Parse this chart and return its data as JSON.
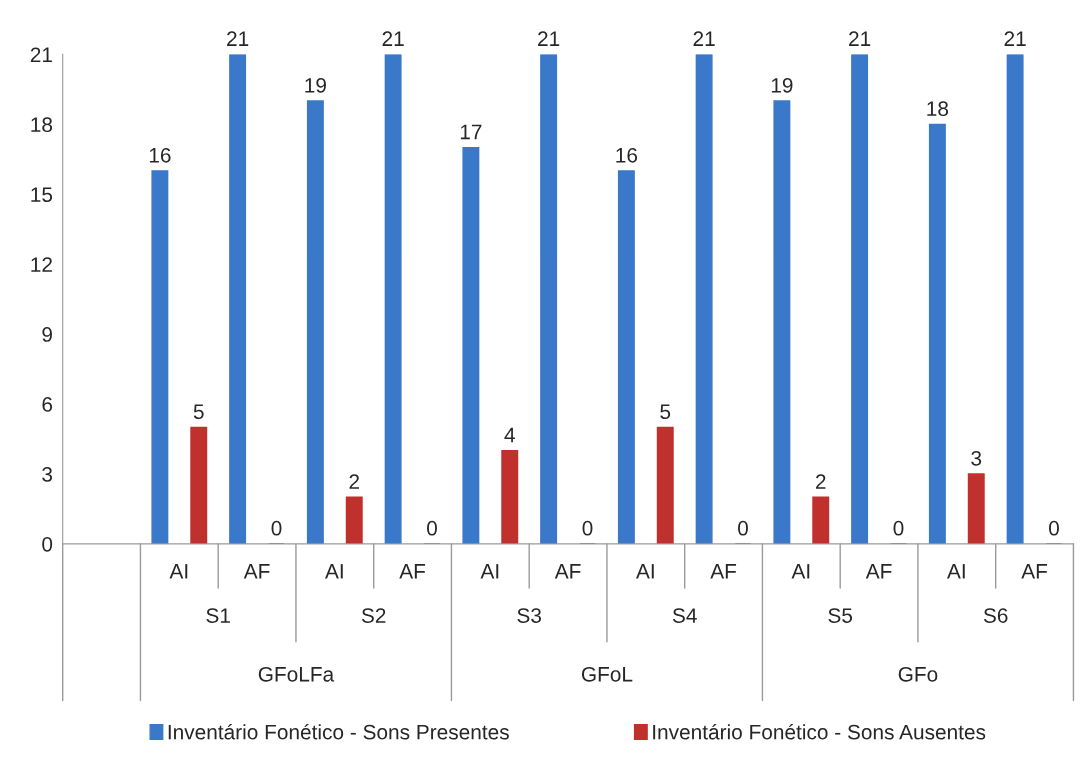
{
  "chart_data": {
    "type": "bar",
    "categories": [
      null,
      "AI",
      "AF",
      "AI",
      "AF",
      "AI",
      "AF",
      "AI",
      "AF",
      "AI",
      "AF",
      "AI",
      "AF"
    ],
    "series": [
      {
        "name": "Inventário Fonético - Sons Presentes",
        "color": "#3a78c9",
        "values": [
          null,
          16,
          21,
          19,
          21,
          17,
          21,
          16,
          21,
          19,
          21,
          18,
          21
        ]
      },
      {
        "name": "Inventário Fonético - Sons Ausentes",
        "color": "#c0302c",
        "values": [
          null,
          5,
          0,
          2,
          0,
          4,
          0,
          5,
          0,
          2,
          0,
          3,
          0
        ]
      }
    ],
    "annotations": [
      "S1",
      "S2",
      "S3",
      "S4",
      "S5",
      "S6",
      "GFoLFa",
      "GFoL",
      "GFo"
    ],
    "ylim": [
      0,
      21
    ],
    "yticks": [
      0,
      3,
      6,
      9,
      12,
      15,
      18,
      21
    ],
    "data_labels": true,
    "grid": false,
    "legend": "bottom"
  }
}
